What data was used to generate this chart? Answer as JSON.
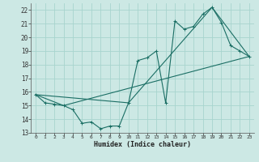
{
  "xlabel": "Humidex (Indice chaleur)",
  "bg_color": "#cce8e4",
  "grid_color": "#a8d4ce",
  "line_color": "#1a6e64",
  "xlim": [
    -0.5,
    23.5
  ],
  "ylim": [
    13,
    22.5
  ],
  "yticks": [
    13,
    14,
    15,
    16,
    17,
    18,
    19,
    20,
    21,
    22
  ],
  "xticks": [
    0,
    1,
    2,
    3,
    4,
    5,
    6,
    7,
    8,
    9,
    10,
    11,
    12,
    13,
    14,
    15,
    16,
    17,
    18,
    19,
    20,
    21,
    22,
    23
  ],
  "line1_x": [
    0,
    1,
    2,
    3,
    4,
    5,
    6,
    7,
    8,
    9,
    10,
    11,
    12,
    13,
    14,
    15,
    16,
    17,
    18,
    19,
    20,
    21,
    22,
    23
  ],
  "line1_y": [
    15.8,
    15.2,
    15.1,
    15.0,
    14.7,
    13.7,
    13.8,
    13.3,
    13.5,
    13.5,
    15.2,
    18.3,
    18.5,
    19.0,
    15.2,
    21.2,
    20.6,
    20.8,
    21.7,
    22.2,
    21.1,
    19.4,
    19.0,
    18.6
  ],
  "line2_x": [
    0,
    3,
    23
  ],
  "line2_y": [
    15.8,
    15.0,
    18.6
  ],
  "line3_x": [
    0,
    10,
    19,
    23
  ],
  "line3_y": [
    15.8,
    15.2,
    22.2,
    18.6
  ]
}
